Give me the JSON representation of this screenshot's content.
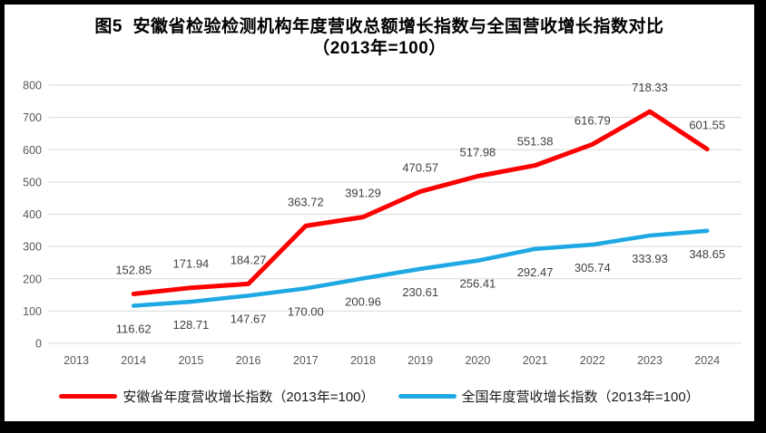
{
  "title": {
    "line1": "图5  安徽省检验检测机构年度营收总额增长指数与全国营收增长指数对比",
    "line2": "（2013年=100）"
  },
  "chart_data": {
    "type": "line",
    "title": "图5 安徽省检验检测机构年度营收总额增长指数与全国营收增长指数对比（2013年=100）",
    "categories": [
      "2013",
      "2014",
      "2015",
      "2016",
      "2017",
      "2018",
      "2019",
      "2020",
      "2021",
      "2022",
      "2023",
      "2024"
    ],
    "series": [
      {
        "name": "安徽省年度营收增长指数（2013年=100）",
        "color": "#FE0000",
        "label_position": "above",
        "values": [
          null,
          152.85,
          171.94,
          184.27,
          363.72,
          391.29,
          470.57,
          517.98,
          551.38,
          616.79,
          718.33,
          601.55
        ]
      },
      {
        "name": "全国年度营收增长指数（2013年=100）",
        "color": "#1FA9E4",
        "label_position": "below",
        "values": [
          null,
          116.62,
          128.71,
          147.67,
          170.0,
          200.96,
          230.61,
          256.41,
          292.47,
          305.74,
          333.93,
          348.65
        ]
      }
    ],
    "ylim": [
      0,
      800
    ],
    "ytick_step": 100,
    "yticks": [
      0,
      100,
      200,
      300,
      400,
      500,
      600,
      700,
      800
    ],
    "grid": true,
    "data_labels": true,
    "label_decimals": 2,
    "legend_position": "bottom",
    "grid_color": "#D9D9D9",
    "axis_label_color": "#595959",
    "data_label_color": "#404040"
  }
}
